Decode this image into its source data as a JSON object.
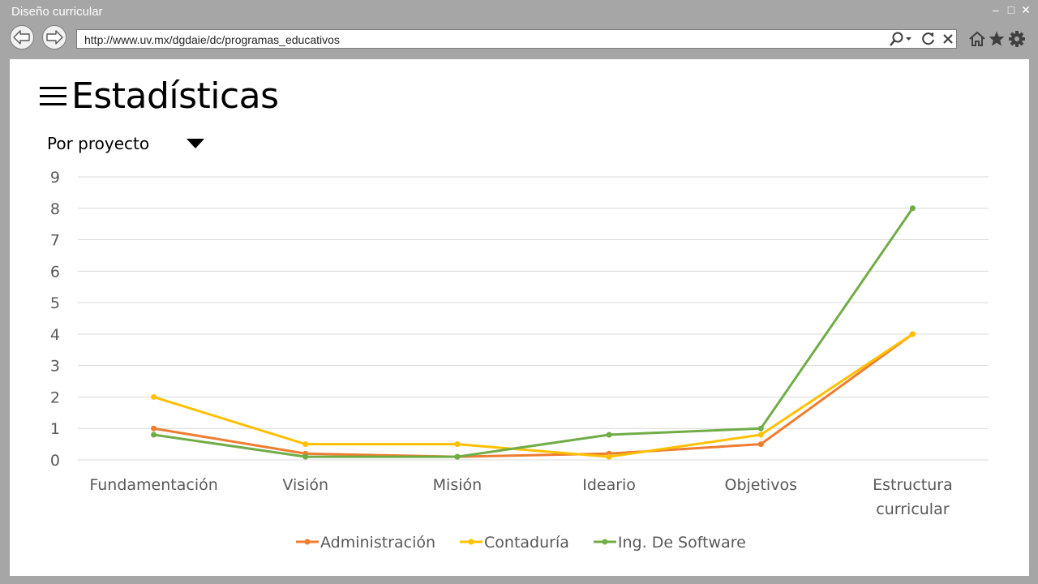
{
  "window": {
    "title": "Diseño curricular",
    "controls": {
      "minimize": "–",
      "maximize": "□",
      "close": "✕"
    }
  },
  "browser": {
    "back_icon": "back-arrow-icon",
    "forward_icon": "forward-arrow-icon",
    "url": "http://www.uv.mx/dgdaie/dc/programas_educativos",
    "address_icons": [
      "search-icon",
      "refresh-icon",
      "stop-icon"
    ],
    "toolbar_icons": [
      "home-icon",
      "favorites-star-icon",
      "settings-gear-icon"
    ]
  },
  "page": {
    "title": "Estadísticas",
    "menu_icon": "hamburger-menu-icon",
    "filter": {
      "selected": "Por proyecto",
      "icon": "dropdown-arrow-icon"
    }
  },
  "chart_data": {
    "type": "line",
    "categories": [
      "Fundamentación",
      "Visión",
      "Misión",
      "Ideario",
      "Objetivos",
      "Estructura curricular"
    ],
    "series": [
      {
        "name": "Administración",
        "color": "#ed7d31",
        "values": [
          1,
          0.2,
          0.1,
          0.2,
          0.5,
          4
        ]
      },
      {
        "name": "Contaduría",
        "color": "#ffc000",
        "values": [
          2,
          0.5,
          0.5,
          0.1,
          0.8,
          4
        ]
      },
      {
        "name": "Ing. De Software",
        "color": "#70ad47",
        "values": [
          0.8,
          0.1,
          0.1,
          0.8,
          1,
          8
        ]
      }
    ],
    "ylim": [
      0,
      9
    ],
    "yticks": [
      0,
      1,
      2,
      3,
      4,
      5,
      6,
      7,
      8,
      9
    ],
    "grid": true,
    "legend": "bottom",
    "gridline_color": "#d9d9d9"
  }
}
